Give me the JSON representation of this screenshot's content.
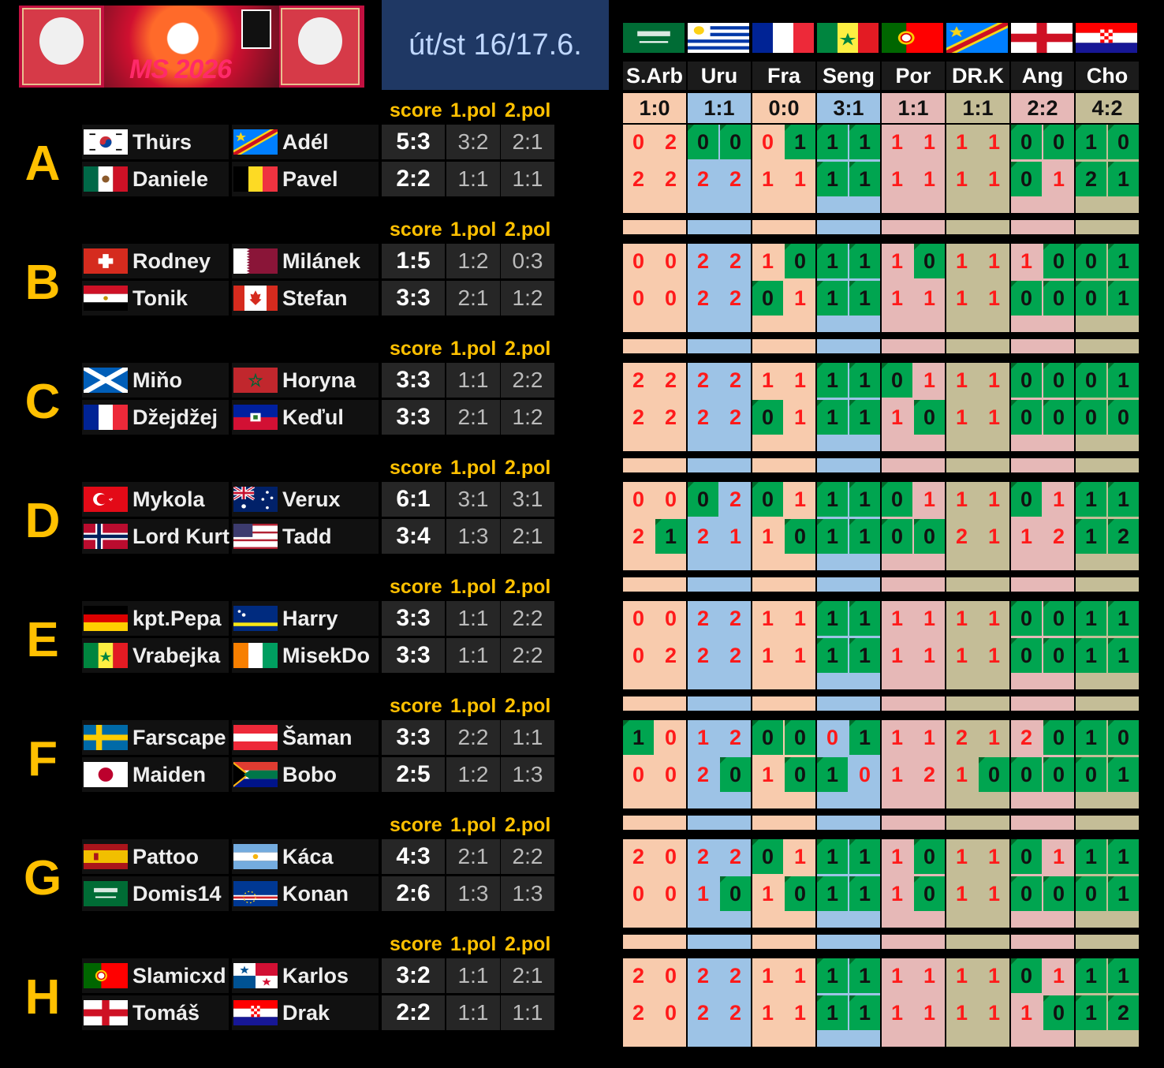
{
  "header": {
    "logo_text": "MS 2026",
    "date": "út/st 16/17.6."
  },
  "columns": [
    {
      "name": "S.Arb",
      "result": "1:0",
      "color": "#f8cbad",
      "flag": "saudi"
    },
    {
      "name": "Uru",
      "result": "1:1",
      "color": "#9dc3e6",
      "flag": "uruguay"
    },
    {
      "name": "Fra",
      "result": "0:0",
      "color": "#f8cbad",
      "flag": "france"
    },
    {
      "name": "Seng",
      "result": "3:1",
      "color": "#9dc3e6",
      "flag": "senegal"
    },
    {
      "name": "Por",
      "result": "1:1",
      "color": "#e6b8b7",
      "flag": "portugal"
    },
    {
      "name": "DR.K",
      "result": "1:1",
      "color": "#c4bd97",
      "flag": "drcongo"
    },
    {
      "name": "Ang",
      "result": "2:2",
      "color": "#e6b8b7",
      "flag": "england"
    },
    {
      "name": "Cho",
      "result": "4:2",
      "color": "#c4bd97",
      "flag": "croatia"
    }
  ],
  "labels": {
    "score": "score",
    "half1": "1.pol",
    "half2": "2.pol"
  },
  "groups": [
    {
      "letter": "A",
      "rows": [
        {
          "p1": "Thürs",
          "f1": "korea",
          "p2": "Adél",
          "f2": "drcongo",
          "score": "5:3",
          "h1": "3:2",
          "h2": "2:1",
          "tips": [
            [
              0,
              2
            ],
            [
              0,
              0
            ],
            [
              0,
              1
            ],
            [
              1,
              1
            ],
            [
              1,
              1
            ],
            [
              1,
              1
            ],
            [
              0,
              0
            ],
            [
              1,
              0
            ]
          ],
          "hits": [
            0,
            0,
            1,
            1,
            0,
            1,
            1,
            1,
            0,
            0,
            0,
            0,
            1,
            1,
            1,
            1
          ]
        },
        {
          "p1": "Daniele",
          "f1": "mexico",
          "p2": "Pavel",
          "f2": "belgium",
          "score": "2:2",
          "h1": "1:1",
          "h2": "1:1",
          "tips": [
            [
              2,
              2
            ],
            [
              2,
              2
            ],
            [
              1,
              1
            ],
            [
              1,
              1
            ],
            [
              1,
              1
            ],
            [
              1,
              1
            ],
            [
              0,
              1
            ],
            [
              2,
              1
            ]
          ],
          "hits": [
            0,
            0,
            0,
            0,
            0,
            0,
            1,
            1,
            0,
            0,
            0,
            0,
            1,
            0,
            1,
            1
          ]
        }
      ]
    },
    {
      "letter": "B",
      "rows": [
        {
          "p1": "Rodney",
          "f1": "swiss",
          "p2": "Milánek",
          "f2": "qatar",
          "score": "1:5",
          "h1": "1:2",
          "h2": "0:3",
          "tips": [
            [
              0,
              0
            ],
            [
              2,
              2
            ],
            [
              1,
              0
            ],
            [
              1,
              1
            ],
            [
              1,
              0
            ],
            [
              1,
              1
            ],
            [
              1,
              0
            ],
            [
              0,
              1
            ]
          ],
          "hits": [
            0,
            0,
            0,
            0,
            0,
            1,
            1,
            1,
            0,
            1,
            0,
            0,
            0,
            1,
            1,
            1
          ]
        },
        {
          "p1": "Tonik",
          "f1": "egypt",
          "p2": "Stefan",
          "f2": "canada",
          "score": "3:3",
          "h1": "2:1",
          "h2": "1:2",
          "tips": [
            [
              0,
              0
            ],
            [
              2,
              2
            ],
            [
              0,
              1
            ],
            [
              1,
              1
            ],
            [
              1,
              1
            ],
            [
              1,
              1
            ],
            [
              0,
              0
            ],
            [
              0,
              1
            ]
          ],
          "hits": [
            0,
            0,
            0,
            0,
            1,
            0,
            1,
            1,
            0,
            0,
            0,
            0,
            1,
            1,
            1,
            1
          ]
        }
      ]
    },
    {
      "letter": "C",
      "rows": [
        {
          "p1": "Miňo",
          "f1": "scotland",
          "p2": "Horyna",
          "f2": "morocco",
          "score": "3:3",
          "h1": "1:1",
          "h2": "2:2",
          "tips": [
            [
              2,
              2
            ],
            [
              2,
              2
            ],
            [
              1,
              1
            ],
            [
              1,
              1
            ],
            [
              0,
              1
            ],
            [
              1,
              1
            ],
            [
              0,
              0
            ],
            [
              0,
              1
            ]
          ],
          "hits": [
            0,
            0,
            0,
            0,
            0,
            0,
            1,
            1,
            1,
            0,
            0,
            0,
            1,
            1,
            1,
            1
          ]
        },
        {
          "p1": "Džejdžej",
          "f1": "france",
          "p2": "Keďul",
          "f2": "haiti",
          "score": "3:3",
          "h1": "2:1",
          "h2": "1:2",
          "tips": [
            [
              2,
              2
            ],
            [
              2,
              2
            ],
            [
              0,
              1
            ],
            [
              1,
              1
            ],
            [
              1,
              0
            ],
            [
              1,
              1
            ],
            [
              0,
              0
            ],
            [
              0,
              0
            ]
          ],
          "hits": [
            0,
            0,
            0,
            0,
            1,
            0,
            1,
            1,
            0,
            1,
            0,
            0,
            1,
            1,
            1,
            1
          ]
        }
      ]
    },
    {
      "letter": "D",
      "rows": [
        {
          "p1": "Mykola",
          "f1": "turkey",
          "p2": "Verux",
          "f2": "australia",
          "score": "6:1",
          "h1": "3:1",
          "h2": "3:1",
          "tips": [
            [
              0,
              0
            ],
            [
              0,
              2
            ],
            [
              0,
              1
            ],
            [
              1,
              1
            ],
            [
              0,
              1
            ],
            [
              1,
              1
            ],
            [
              0,
              1
            ],
            [
              1,
              1
            ]
          ],
          "hits": [
            0,
            0,
            1,
            0,
            1,
            0,
            1,
            1,
            1,
            0,
            0,
            0,
            1,
            0,
            1,
            1
          ]
        },
        {
          "p1": "Lord Kurt",
          "f1": "norway",
          "p2": "Tadd",
          "f2": "usa",
          "score": "3:4",
          "h1": "1:3",
          "h2": "2:1",
          "tips": [
            [
              2,
              1
            ],
            [
              2,
              1
            ],
            [
              1,
              0
            ],
            [
              1,
              1
            ],
            [
              0,
              0
            ],
            [
              2,
              1
            ],
            [
              1,
              2
            ],
            [
              1,
              2
            ]
          ],
          "hits": [
            0,
            1,
            0,
            0,
            0,
            1,
            1,
            1,
            1,
            1,
            0,
            0,
            0,
            0,
            1,
            1
          ]
        }
      ]
    },
    {
      "letter": "E",
      "rows": [
        {
          "p1": "kpt.Pepa",
          "f1": "germany",
          "p2": "Harry",
          "f2": "curacao",
          "score": "3:3",
          "h1": "1:1",
          "h2": "2:2",
          "tips": [
            [
              0,
              0
            ],
            [
              2,
              2
            ],
            [
              1,
              1
            ],
            [
              1,
              1
            ],
            [
              1,
              1
            ],
            [
              1,
              1
            ],
            [
              0,
              0
            ],
            [
              1,
              1
            ]
          ],
          "hits": [
            0,
            0,
            0,
            0,
            0,
            0,
            1,
            1,
            0,
            0,
            0,
            0,
            1,
            1,
            1,
            1
          ]
        },
        {
          "p1": "Vrabejka",
          "f1": "senegal",
          "p2": "MisekDo",
          "f2": "ivory",
          "score": "3:3",
          "h1": "1:1",
          "h2": "2:2",
          "tips": [
            [
              0,
              2
            ],
            [
              2,
              2
            ],
            [
              1,
              1
            ],
            [
              1,
              1
            ],
            [
              1,
              1
            ],
            [
              1,
              1
            ],
            [
              0,
              0
            ],
            [
              1,
              1
            ]
          ],
          "hits": [
            0,
            0,
            0,
            0,
            0,
            0,
            1,
            1,
            0,
            0,
            0,
            0,
            1,
            1,
            1,
            1
          ]
        }
      ]
    },
    {
      "letter": "F",
      "rows": [
        {
          "p1": "Farscape",
          "f1": "sweden",
          "p2": "Šaman",
          "f2": "austria",
          "score": "3:3",
          "h1": "2:2",
          "h2": "1:1",
          "tips": [
            [
              1,
              0
            ],
            [
              1,
              2
            ],
            [
              0,
              0
            ],
            [
              0,
              1
            ],
            [
              1,
              1
            ],
            [
              2,
              1
            ],
            [
              2,
              0
            ],
            [
              1,
              0
            ]
          ],
          "hits": [
            1,
            0,
            0,
            0,
            1,
            1,
            0,
            1,
            0,
            0,
            0,
            0,
            0,
            1,
            1,
            1
          ]
        },
        {
          "p1": "Maiden",
          "f1": "japan",
          "p2": "Bobo",
          "f2": "southafrica",
          "score": "2:5",
          "h1": "1:2",
          "h2": "1:3",
          "tips": [
            [
              0,
              0
            ],
            [
              2,
              0
            ],
            [
              1,
              0
            ],
            [
              1,
              0
            ],
            [
              1,
              2
            ],
            [
              1,
              0
            ],
            [
              0,
              0
            ],
            [
              0,
              1
            ]
          ],
          "hits": [
            0,
            0,
            0,
            1,
            0,
            1,
            1,
            0,
            0,
            0,
            0,
            1,
            1,
            1,
            1,
            1
          ]
        }
      ]
    },
    {
      "letter": "G",
      "rows": [
        {
          "p1": "Pattoo",
          "f1": "spain",
          "p2": "Káca",
          "f2": "argentina",
          "score": "4:3",
          "h1": "2:1",
          "h2": "2:2",
          "tips": [
            [
              2,
              0
            ],
            [
              2,
              2
            ],
            [
              0,
              1
            ],
            [
              1,
              1
            ],
            [
              1,
              0
            ],
            [
              1,
              1
            ],
            [
              0,
              1
            ],
            [
              1,
              1
            ]
          ],
          "hits": [
            0,
            0,
            0,
            0,
            1,
            0,
            1,
            1,
            0,
            1,
            0,
            0,
            1,
            0,
            1,
            1
          ]
        },
        {
          "p1": "Domis14",
          "f1": "saudi",
          "p2": "Konan",
          "f2": "capeverde",
          "score": "2:6",
          "h1": "1:3",
          "h2": "1:3",
          "tips": [
            [
              0,
              0
            ],
            [
              1,
              0
            ],
            [
              1,
              0
            ],
            [
              1,
              1
            ],
            [
              1,
              0
            ],
            [
              1,
              1
            ],
            [
              0,
              0
            ],
            [
              0,
              1
            ]
          ],
          "hits": [
            0,
            0,
            0,
            1,
            0,
            1,
            1,
            1,
            0,
            1,
            0,
            0,
            1,
            1,
            1,
            1
          ]
        }
      ]
    },
    {
      "letter": "H",
      "rows": [
        {
          "p1": "Slamicxd",
          "f1": "portugal",
          "p2": "Karlos",
          "f2": "panama",
          "score": "3:2",
          "h1": "1:1",
          "h2": "2:1",
          "tips": [
            [
              2,
              0
            ],
            [
              2,
              2
            ],
            [
              1,
              1
            ],
            [
              1,
              1
            ],
            [
              1,
              1
            ],
            [
              1,
              1
            ],
            [
              0,
              1
            ],
            [
              1,
              1
            ]
          ],
          "hits": [
            0,
            0,
            0,
            0,
            0,
            0,
            1,
            1,
            0,
            0,
            0,
            0,
            1,
            0,
            1,
            1
          ]
        },
        {
          "p1": "Tomáš",
          "f1": "england",
          "p2": "Drak",
          "f2": "croatia",
          "score": "2:2",
          "h1": "1:1",
          "h2": "1:1",
          "tips": [
            [
              2,
              0
            ],
            [
              2,
              2
            ],
            [
              1,
              1
            ],
            [
              1,
              1
            ],
            [
              1,
              1
            ],
            [
              1,
              1
            ],
            [
              1,
              0
            ],
            [
              1,
              2
            ]
          ],
          "hits": [
            0,
            0,
            0,
            0,
            0,
            0,
            1,
            1,
            0,
            0,
            0,
            0,
            0,
            1,
            1,
            1
          ]
        }
      ]
    }
  ]
}
